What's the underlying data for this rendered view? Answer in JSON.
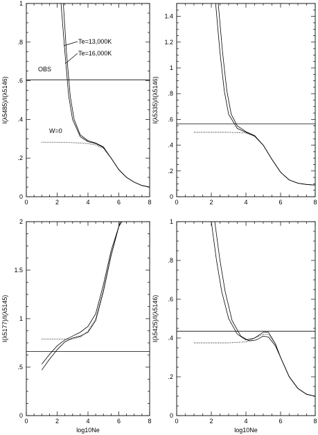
{
  "chart_data": [
    {
      "type": "line",
      "id": "top-left",
      "ylabel": "I(λ5485)/I(λ5146)",
      "xlabel": "",
      "xlim": [
        0,
        8
      ],
      "ylim": [
        0,
        1
      ],
      "xticks": [
        "0",
        "2",
        "4",
        "6",
        "8"
      ],
      "yticks": [
        "0",
        ".2",
        ".4",
        ".6",
        ".8",
        "1"
      ],
      "annotations": [
        "Te=13,000K",
        "Te=16,000K",
        "OBS",
        "W=0"
      ],
      "hline": 0.605,
      "series": [
        {
          "name": "Te=13,000K",
          "style": "solid",
          "x": [
            2.25,
            2.5,
            2.75,
            3.0,
            3.5,
            4.0,
            4.5,
            5.0,
            5.5,
            6.0,
            6.5,
            7.0,
            7.5,
            8.0
          ],
          "y": [
            1.0,
            0.75,
            0.52,
            0.4,
            0.31,
            0.285,
            0.275,
            0.255,
            0.2,
            0.14,
            0.1,
            0.075,
            0.058,
            0.05
          ]
        },
        {
          "name": "Te=16,000K",
          "style": "solid",
          "x": [
            2.4,
            2.6,
            2.85,
            3.1,
            3.5,
            4.0,
            4.5,
            5.0,
            5.5,
            6.0,
            6.5,
            7.0,
            7.5,
            8.0
          ],
          "y": [
            1.0,
            0.75,
            0.52,
            0.4,
            0.32,
            0.29,
            0.278,
            0.258,
            0.2,
            0.14,
            0.1,
            0.075,
            0.058,
            0.05
          ]
        },
        {
          "name": "W=0",
          "style": "dotted",
          "x": [
            1.0,
            2.0,
            3.0,
            4.0,
            4.5,
            5.0,
            5.5,
            6.0,
            6.5,
            7.0,
            7.5,
            8.0
          ],
          "y": [
            0.282,
            0.282,
            0.28,
            0.275,
            0.268,
            0.25,
            0.2,
            0.14,
            0.1,
            0.075,
            0.058,
            0.05
          ]
        }
      ]
    },
    {
      "type": "line",
      "id": "top-right",
      "ylabel": "I(λ5335)/I(λ5146)",
      "xlabel": "",
      "xlim": [
        0,
        8
      ],
      "ylim": [
        0,
        1.5
      ],
      "xticks": [
        "0",
        "2",
        "4",
        "6",
        "8"
      ],
      "yticks": [
        "0",
        ".2",
        ".4",
        ".6",
        ".8",
        "1",
        "1.2",
        "1.4"
      ],
      "hline": 0.565,
      "series": [
        {
          "name": "Te=13,000K",
          "style": "solid",
          "x": [
            2.25,
            2.5,
            2.75,
            3.0,
            3.5,
            4.0,
            4.5,
            5.0,
            5.5,
            6.0,
            6.5,
            7.0,
            7.5,
            8.0
          ],
          "y": [
            1.5,
            1.12,
            0.82,
            0.64,
            0.53,
            0.5,
            0.47,
            0.4,
            0.29,
            0.19,
            0.13,
            0.105,
            0.095,
            0.09
          ]
        },
        {
          "name": "Te=16,000K",
          "style": "solid",
          "x": [
            2.4,
            2.65,
            2.9,
            3.15,
            3.5,
            4.0,
            4.5,
            5.0,
            5.5,
            6.0,
            6.5,
            7.0,
            7.5,
            8.0
          ],
          "y": [
            1.5,
            1.12,
            0.82,
            0.64,
            0.55,
            0.505,
            0.475,
            0.4,
            0.29,
            0.19,
            0.13,
            0.105,
            0.095,
            0.09
          ]
        },
        {
          "name": "W=0",
          "style": "dotted",
          "x": [
            1.0,
            2.0,
            3.0,
            4.0,
            4.5,
            5.0,
            5.5,
            6.0,
            6.5,
            7.0,
            7.5,
            8.0
          ],
          "y": [
            0.5,
            0.5,
            0.5,
            0.495,
            0.47,
            0.4,
            0.29,
            0.19,
            0.13,
            0.105,
            0.095,
            0.09
          ]
        }
      ]
    },
    {
      "type": "line",
      "id": "bottom-left",
      "ylabel": "I(λ5177)/I(λ5145)",
      "xlabel": "log10Ne",
      "xlim": [
        0,
        8
      ],
      "ylim": [
        0,
        2
      ],
      "xticks": [
        "0",
        "2",
        "4",
        "6",
        "8"
      ],
      "yticks": [
        "0",
        ".5",
        "1",
        "1.5",
        "2"
      ],
      "hline": 0.66,
      "series": [
        {
          "name": "Te=13,000K",
          "style": "solid",
          "x": [
            1.0,
            1.5,
            2.0,
            2.5,
            3.0,
            3.5,
            4.0,
            4.5,
            5.0,
            5.5,
            6.0,
            6.2
          ],
          "y": [
            0.53,
            0.63,
            0.72,
            0.78,
            0.82,
            0.86,
            0.92,
            1.05,
            1.35,
            1.7,
            1.95,
            2.0
          ]
        },
        {
          "name": "Te=16,000K",
          "style": "solid",
          "x": [
            1.0,
            1.5,
            2.0,
            2.5,
            3.0,
            3.5,
            4.0,
            4.5,
            5.0,
            5.5,
            6.0,
            6.1
          ],
          "y": [
            0.47,
            0.58,
            0.68,
            0.76,
            0.8,
            0.82,
            0.86,
            0.98,
            1.28,
            1.65,
            1.95,
            2.0
          ]
        },
        {
          "name": "W=0",
          "style": "dotted",
          "x": [
            1.0,
            2.0,
            3.0,
            3.5,
            4.0,
            4.5,
            5.0,
            5.5,
            6.0,
            6.1
          ],
          "y": [
            0.79,
            0.79,
            0.79,
            0.81,
            0.87,
            1.0,
            1.3,
            1.66,
            1.95,
            2.0
          ]
        }
      ]
    },
    {
      "type": "line",
      "id": "bottom-right",
      "ylabel": "I(λ5425)/I(λ5146)",
      "xlabel": "log10Ne",
      "xlim": [
        0,
        8
      ],
      "ylim": [
        0,
        1
      ],
      "xticks": [
        "0",
        "2",
        "4",
        "6",
        "8"
      ],
      "yticks": [
        "0",
        ".2",
        ".4",
        ".6",
        ".8",
        "1"
      ],
      "hline": 0.435,
      "series": [
        {
          "name": "Te=13,000K",
          "style": "solid",
          "x": [
            2.0,
            2.3,
            2.6,
            3.0,
            3.5,
            4.0,
            4.5,
            5.0,
            5.3,
            5.7,
            6.0,
            6.5,
            7.0,
            7.5,
            8.0
          ],
          "y": [
            1.0,
            0.8,
            0.64,
            0.5,
            0.42,
            0.39,
            0.4,
            0.43,
            0.43,
            0.37,
            0.3,
            0.2,
            0.14,
            0.11,
            0.1
          ]
        },
        {
          "name": "Te=16,000K",
          "style": "solid",
          "x": [
            2.2,
            2.5,
            2.8,
            3.2,
            3.7,
            4.2,
            4.6,
            5.0,
            5.3,
            5.7,
            6.0,
            6.5,
            7.0,
            7.5,
            8.0
          ],
          "y": [
            1.0,
            0.8,
            0.64,
            0.49,
            0.41,
            0.385,
            0.39,
            0.41,
            0.405,
            0.36,
            0.3,
            0.2,
            0.14,
            0.11,
            0.1
          ]
        },
        {
          "name": "W=0",
          "style": "dotted",
          "x": [
            1.0,
            2.0,
            3.0,
            4.0,
            4.5,
            5.0,
            5.3,
            5.7,
            6.0,
            6.5,
            7.0,
            7.5,
            8.0
          ],
          "y": [
            0.375,
            0.375,
            0.375,
            0.38,
            0.4,
            0.42,
            0.42,
            0.37,
            0.3,
            0.2,
            0.14,
            0.11,
            0.1
          ]
        }
      ]
    }
  ]
}
